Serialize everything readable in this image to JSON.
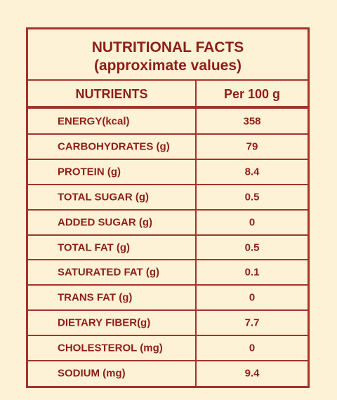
{
  "title": [
    "NUTRITIONAL FACTS",
    "(approximate values)"
  ],
  "table": {
    "header": [
      "NUTRIENTS",
      "Per 100 g"
    ],
    "rows": [
      [
        "ENERGY(kcal)",
        358
      ],
      [
        "CARBOHYDRATES (g)",
        79
      ],
      [
        "PROTEIN (g)",
        8.4
      ],
      [
        "TOTAL SUGAR (g)",
        0.5
      ],
      [
        "ADDED SUGAR (g)",
        0
      ],
      [
        "TOTAL FAT (g)",
        0.5
      ],
      [
        "SATURATED FAT (g)",
        0.1
      ],
      [
        "TRANS FAT (g)",
        0
      ],
      [
        "DIETARY FIBER(g)",
        7.7
      ],
      [
        "CHOLESTEROL (mg)",
        0
      ],
      [
        "SODIUM (mg)",
        9.4
      ]
    ]
  }
}
